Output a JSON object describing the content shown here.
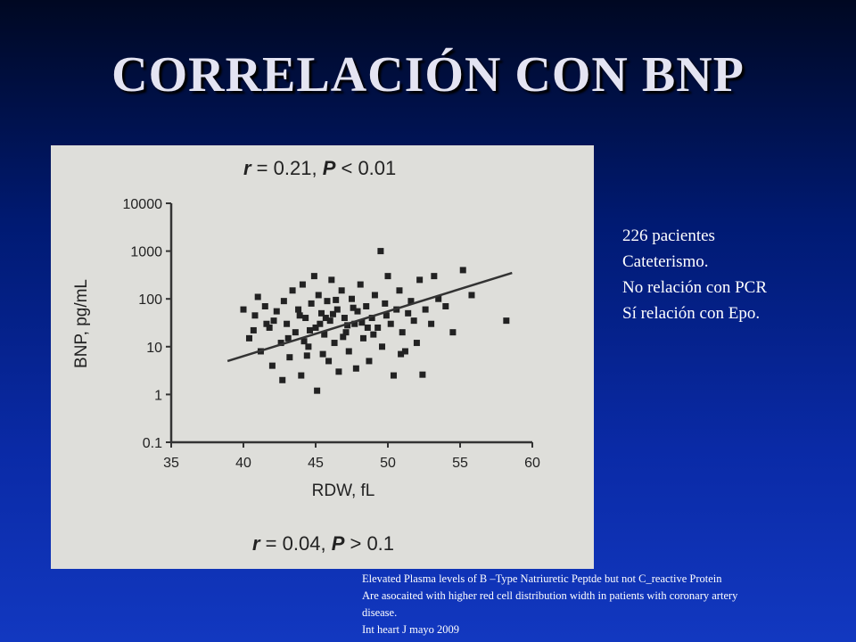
{
  "slide": {
    "title": "CORRELACIÓN CON BNP",
    "notes": [
      "226 pacientes",
      "Cateterismo.",
      "No relación con PCR",
      "Sí relación con Epo."
    ],
    "caption": [
      "Elevated Plasma levels of B –Type Natriuretic Peptde but not C_reactive Protein",
      "Are asocaited with higher red cell distribution width in patients with coronary artery",
      "disease.",
      "Int heart J mayo 2009"
    ]
  },
  "chart_data": {
    "type": "scatter",
    "annotation_top_r": "r",
    "annotation_top_r_value": " = 0.21, ",
    "annotation_top_p": "P",
    "annotation_top_p_value": " < 0.01",
    "annotation_bottom_r": "r",
    "annotation_bottom_r_value": " = 0.04, ",
    "annotation_bottom_p": "P",
    "annotation_bottom_p_value": " > 0.1",
    "xlabel": "RDW, fL",
    "ylabel": "BNP, pg/mL",
    "x_ticks": [
      "35",
      "40",
      "45",
      "50",
      "55",
      "60"
    ],
    "y_ticks": [
      "0.1",
      "1",
      "10",
      "100",
      "1000",
      "10000"
    ],
    "xlim": [
      35,
      60
    ],
    "ylim": [
      0.1,
      10000
    ],
    "y_scale": "log",
    "regression_line": {
      "x": [
        38.9,
        58.6
      ],
      "y": [
        5,
        350
      ]
    },
    "points": [
      [
        40,
        60
      ],
      [
        40.4,
        15
      ],
      [
        40.8,
        45
      ],
      [
        41.2,
        8
      ],
      [
        41.5,
        70
      ],
      [
        41.8,
        25
      ],
      [
        42,
        4
      ],
      [
        42.3,
        55
      ],
      [
        42.6,
        12
      ],
      [
        42.8,
        90
      ],
      [
        43,
        30
      ],
      [
        43.2,
        6
      ],
      [
        43.4,
        150
      ],
      [
        43.6,
        20
      ],
      [
        43.8,
        60
      ],
      [
        44,
        2.5
      ],
      [
        44.1,
        200
      ],
      [
        44.3,
        40
      ],
      [
        44.5,
        10
      ],
      [
        44.7,
        80
      ],
      [
        44.9,
        300
      ],
      [
        45,
        25
      ],
      [
        45.1,
        1.2
      ],
      [
        45.2,
        120
      ],
      [
        45.4,
        50
      ],
      [
        45.5,
        7
      ],
      [
        45.6,
        18
      ],
      [
        45.8,
        90
      ],
      [
        46,
        35
      ],
      [
        46.1,
        250
      ],
      [
        46.3,
        12
      ],
      [
        46.5,
        60
      ],
      [
        46.6,
        3
      ],
      [
        46.8,
        150
      ],
      [
        47,
        40
      ],
      [
        47.1,
        20
      ],
      [
        47.3,
        8
      ],
      [
        47.5,
        100
      ],
      [
        47.7,
        30
      ],
      [
        47.9,
        55
      ],
      [
        48.1,
        200
      ],
      [
        48.3,
        15
      ],
      [
        48.5,
        70
      ],
      [
        48.7,
        5
      ],
      [
        48.9,
        40
      ],
      [
        49.1,
        120
      ],
      [
        49.3,
        25
      ],
      [
        49.5,
        1000
      ],
      [
        49.6,
        10
      ],
      [
        49.8,
        80
      ],
      [
        50,
        300
      ],
      [
        50.2,
        30
      ],
      [
        50.4,
        2.5
      ],
      [
        50.6,
        60
      ],
      [
        50.8,
        150
      ],
      [
        51,
        20
      ],
      [
        51.2,
        8
      ],
      [
        51.4,
        50
      ],
      [
        51.6,
        90
      ],
      [
        51.8,
        35
      ],
      [
        52,
        12
      ],
      [
        52.2,
        250
      ],
      [
        52.6,
        60
      ],
      [
        53,
        30
      ],
      [
        53.5,
        100
      ],
      [
        54,
        70
      ],
      [
        54.5,
        20
      ],
      [
        55.2,
        400
      ],
      [
        55.8,
        120
      ],
      [
        58.2,
        35
      ],
      [
        41,
        110
      ],
      [
        42.1,
        35
      ],
      [
        43.1,
        15
      ],
      [
        43.9,
        45
      ],
      [
        44.6,
        22
      ],
      [
        45.3,
        30
      ],
      [
        46.2,
        48
      ],
      [
        47.2,
        28
      ],
      [
        48.2,
        32
      ],
      [
        49,
        18
      ],
      [
        40.7,
        22
      ],
      [
        44.2,
        13
      ],
      [
        45.7,
        40
      ],
      [
        46.9,
        16
      ],
      [
        47.6,
        65
      ],
      [
        48.6,
        25
      ],
      [
        49.9,
        45
      ],
      [
        52.4,
        2.6
      ],
      [
        53.2,
        300
      ],
      [
        50.9,
        7
      ],
      [
        42.7,
        2
      ],
      [
        45.9,
        5
      ],
      [
        47.8,
        3.5
      ],
      [
        44.4,
        6.5
      ],
      [
        41.6,
        30
      ],
      [
        46.4,
        95
      ]
    ]
  }
}
